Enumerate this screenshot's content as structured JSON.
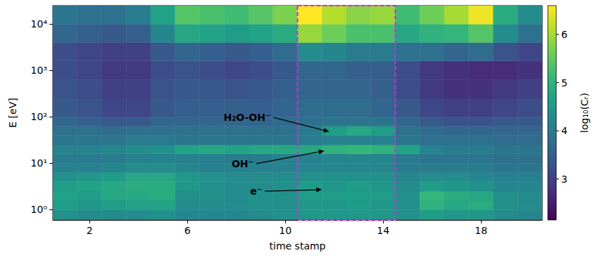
{
  "chart_data": {
    "type": "heatmap",
    "x_label": "time stamp",
    "y_label": "E [eV]",
    "log": "y",
    "grid": false,
    "xlim": [
      0.5,
      20.5
    ],
    "xticks": [
      2,
      6,
      10,
      14,
      18
    ],
    "ylim": [
      0.6,
      25000
    ],
    "yticks": [
      {
        "value": 1,
        "label": "10⁰"
      },
      {
        "value": 10,
        "label": "10¹"
      },
      {
        "value": 100,
        "label": "10²"
      },
      {
        "value": 1000,
        "label": "10³"
      },
      {
        "value": 10000,
        "label": "10⁴"
      }
    ],
    "x_edges": [
      0.5,
      1.5,
      2.5,
      3.5,
      4.5,
      5.5,
      6.5,
      7.5,
      8.5,
      9.5,
      10.5,
      11.5,
      12.5,
      13.5,
      14.5,
      15.5,
      16.5,
      17.5,
      18.5,
      19.5,
      20.5
    ],
    "y_edges": [
      0.6,
      1,
      1.6,
      2.5,
      4,
      6.3,
      10,
      16,
      25,
      40,
      63,
      100,
      250,
      630,
      1600,
      4000,
      10000,
      25000
    ],
    "cells": [
      [
        4.4,
        4.3,
        4.3,
        4.3,
        4.4,
        4.2,
        4.2,
        4.2,
        4.3,
        4.4,
        4.5,
        4.5,
        4.5,
        4.5,
        4.4,
        4.6,
        4.5,
        4.5,
        4.3,
        4.2
      ],
      [
        4.6,
        4.5,
        4.6,
        4.7,
        4.7,
        4.3,
        4.3,
        4.3,
        4.4,
        4.4,
        4.5,
        4.5,
        4.6,
        4.5,
        4.4,
        5.0,
        4.8,
        4.9,
        4.4,
        4.3
      ],
      [
        4.7,
        4.6,
        4.8,
        4.8,
        4.9,
        4.4,
        4.4,
        4.3,
        4.4,
        4.4,
        4.6,
        4.6,
        4.6,
        4.6,
        4.4,
        5.1,
        4.9,
        4.8,
        4.4,
        4.3
      ],
      [
        4.6,
        4.7,
        4.8,
        4.9,
        4.9,
        4.5,
        4.4,
        4.3,
        4.3,
        4.4,
        4.6,
        4.5,
        4.6,
        4.5,
        4.3,
        4.6,
        4.5,
        4.4,
        4.2,
        4.2
      ],
      [
        4.4,
        4.5,
        4.6,
        4.8,
        4.8,
        4.5,
        4.4,
        4.3,
        4.3,
        4.3,
        4.4,
        4.4,
        4.4,
        4.4,
        4.2,
        4.3,
        4.3,
        4.2,
        4.1,
        4.1
      ],
      [
        4.1,
        4.1,
        4.2,
        4.3,
        4.3,
        4.2,
        4.1,
        4.1,
        4.1,
        4.1,
        4.2,
        4.2,
        4.2,
        4.2,
        4.0,
        4.0,
        4.0,
        4.0,
        3.9,
        3.9
      ],
      [
        4.0,
        4.0,
        4.0,
        4.1,
        4.1,
        4.1,
        4.1,
        4.0,
        4.0,
        4.1,
        4.1,
        4.2,
        4.2,
        4.2,
        4.0,
        3.9,
        3.9,
        3.9,
        3.8,
        3.8
      ],
      [
        4.1,
        4.1,
        4.2,
        4.3,
        4.4,
        4.7,
        4.8,
        4.7,
        4.8,
        4.8,
        4.8,
        5.0,
        5.1,
        5.0,
        4.7,
        4.1,
        4.0,
        4.0,
        3.9,
        3.9
      ],
      [
        3.9,
        3.9,
        3.9,
        4.0,
        4.0,
        3.9,
        3.9,
        3.9,
        3.9,
        3.9,
        4.0,
        4.1,
        4.1,
        4.1,
        3.9,
        3.8,
        3.8,
        3.8,
        3.7,
        3.7
      ],
      [
        3.8,
        3.8,
        3.7,
        3.8,
        3.8,
        3.8,
        3.8,
        3.8,
        3.8,
        3.8,
        4.0,
        4.6,
        4.8,
        4.6,
        3.8,
        3.7,
        3.6,
        3.6,
        3.6,
        3.6
      ],
      [
        3.6,
        3.5,
        3.4,
        3.4,
        3.6,
        3.6,
        3.6,
        3.6,
        3.6,
        3.7,
        3.8,
        3.9,
        3.9,
        3.9,
        3.6,
        3.4,
        3.3,
        3.3,
        3.4,
        3.4
      ],
      [
        3.4,
        3.3,
        3.1,
        3.1,
        3.4,
        3.5,
        3.5,
        3.5,
        3.5,
        3.6,
        3.7,
        3.7,
        3.7,
        3.6,
        3.4,
        3.1,
        3.0,
        3.0,
        3.1,
        3.2
      ],
      [
        3.3,
        3.2,
        3.0,
        3.0,
        3.3,
        3.4,
        3.4,
        3.3,
        3.4,
        3.5,
        3.6,
        3.6,
        3.6,
        3.5,
        3.2,
        2.9,
        2.8,
        2.8,
        2.9,
        3.0
      ],
      [
        3.2,
        3.1,
        2.9,
        2.9,
        3.2,
        3.3,
        3.2,
        3.1,
        3.2,
        3.4,
        3.6,
        3.6,
        3.5,
        3.5,
        3.2,
        2.9,
        2.8,
        2.7,
        2.7,
        2.8
      ],
      [
        3.2,
        3.1,
        3.0,
        3.0,
        3.4,
        3.6,
        3.5,
        3.4,
        3.5,
        3.7,
        4.3,
        4.2,
        4.0,
        4.0,
        3.8,
        3.8,
        3.6,
        3.7,
        3.3,
        3.1
      ],
      [
        3.6,
        3.5,
        3.4,
        3.5,
        4.2,
        4.8,
        4.7,
        4.6,
        4.7,
        4.9,
        5.9,
        5.6,
        5.3,
        5.3,
        4.8,
        5.0,
        5.1,
        5.4,
        4.3,
        3.8
      ],
      [
        3.9,
        3.8,
        3.8,
        4.0,
        4.7,
        5.4,
        5.3,
        5.2,
        5.4,
        5.7,
        6.6,
        6.1,
        5.8,
        5.9,
        5.2,
        5.6,
        6.0,
        6.5,
        4.9,
        4.3
      ]
    ],
    "colorbar": {
      "label": "log₁₀(Cᵣ)",
      "range": [
        2.15,
        6.6
      ],
      "ticks": [
        3,
        4,
        5,
        6
      ]
    },
    "highlight": {
      "x": [
        10.5,
        14.5
      ],
      "color": "#e61ee6"
    },
    "annotations": [
      {
        "text": "H₂O-OH⁻",
        "x": 11.8,
        "y": 48,
        "text_x": 9.4,
        "text_y": 97
      },
      {
        "text": "OH⁻",
        "x": 11.6,
        "y": 18.5,
        "text_x": 8.7,
        "text_y": 9.8
      },
      {
        "text": "e⁻",
        "x": 11.5,
        "y": 2.7,
        "text_x": 9.05,
        "text_y": 2.5
      }
    ]
  }
}
